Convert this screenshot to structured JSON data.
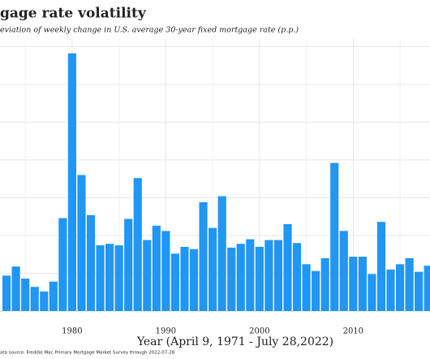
{
  "chart_data": {
    "type": "bar",
    "title": "gage rate volatility",
    "subtitle": "eviation of weekly change in U.S. average 30-year fixed mortgage rate (p.p.)",
    "x_label": "Year (April 9, 1971 - July 28,2022)",
    "source": "ata source: Freddie Mac Primary Mortgage Market Survey through 2022-07-28",
    "x": [
      1973,
      1974,
      1975,
      1976,
      1977,
      1978,
      1979,
      1980,
      1981,
      1982,
      1983,
      1984,
      1985,
      1986,
      1987,
      1988,
      1989,
      1990,
      1991,
      1992,
      1993,
      1994,
      1995,
      1996,
      1997,
      1998,
      1999,
      2000,
      2001,
      2002,
      2003,
      2004,
      2005,
      2006,
      2007,
      2008,
      2009,
      2010,
      2011,
      2012,
      2013,
      2014,
      2015,
      2016,
      2017,
      2018
    ],
    "values": [
      0.047,
      0.059,
      0.043,
      0.032,
      0.026,
      0.039,
      0.123,
      0.341,
      0.18,
      0.127,
      0.087,
      0.089,
      0.087,
      0.122,
      0.176,
      0.094,
      0.113,
      0.106,
      0.076,
      0.085,
      0.082,
      0.144,
      0.11,
      0.152,
      0.084,
      0.089,
      0.095,
      0.085,
      0.094,
      0.094,
      0.115,
      0.09,
      0.062,
      0.053,
      0.07,
      0.196,
      0.106,
      0.072,
      0.072,
      0.049,
      0.118,
      0.055,
      0.062,
      0.07,
      0.052,
      0.06
    ],
    "color": "#2196f3",
    "xlim": [
      1972.3,
      2018.2
    ],
    "xticks": [
      1980,
      1990,
      2000,
      2010
    ],
    "ylim": [
      0,
      0.36
    ],
    "yticks": [
      0,
      0.05,
      0.1,
      0.15,
      0.2,
      0.25,
      0.3,
      0.35
    ],
    "grid": true
  }
}
